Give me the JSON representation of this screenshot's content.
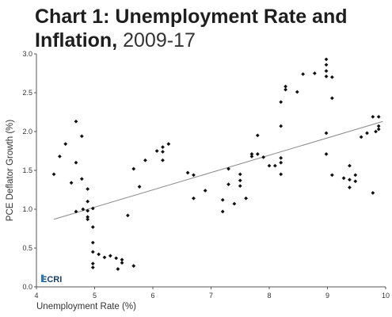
{
  "chart_data": {
    "type": "scatter",
    "title": "Chart 1: Unemployment Rate and Inflation,",
    "title_years": "2009-17",
    "xlabel": "Unemployment Rate (%)",
    "ylabel": "PCE Deflator Growth (%)",
    "xlim": [
      4,
      10
    ],
    "ylim": [
      0.0,
      3.0
    ],
    "xticks": [
      4,
      5,
      6,
      7,
      8,
      9,
      10
    ],
    "yticks": [
      "0.0",
      "0.5",
      "1.0",
      "1.5",
      "2.0",
      "2.5",
      "3.0"
    ],
    "grid": false,
    "trendline": {
      "x": [
        4.3,
        9.95
      ],
      "y": [
        0.87,
        2.13
      ]
    },
    "points": [
      {
        "x": 4.3,
        "y": 1.45
      },
      {
        "x": 4.4,
        "y": 1.68
      },
      {
        "x": 4.5,
        "y": 1.84
      },
      {
        "x": 4.6,
        "y": 1.34
      },
      {
        "x": 4.68,
        "y": 2.13
      },
      {
        "x": 4.68,
        "y": 1.6
      },
      {
        "x": 4.68,
        "y": 0.97
      },
      {
        "x": 4.78,
        "y": 1.94
      },
      {
        "x": 4.78,
        "y": 1.39
      },
      {
        "x": 4.8,
        "y": 1.0
      },
      {
        "x": 4.88,
        "y": 1.26
      },
      {
        "x": 4.88,
        "y": 1.1
      },
      {
        "x": 4.88,
        "y": 0.98
      },
      {
        "x": 4.88,
        "y": 0.9
      },
      {
        "x": 4.88,
        "y": 0.87
      },
      {
        "x": 4.97,
        "y": 1.01
      },
      {
        "x": 4.97,
        "y": 0.77
      },
      {
        "x": 4.97,
        "y": 0.57
      },
      {
        "x": 4.97,
        "y": 0.45
      },
      {
        "x": 4.97,
        "y": 0.3
      },
      {
        "x": 4.97,
        "y": 0.25
      },
      {
        "x": 5.07,
        "y": 0.42
      },
      {
        "x": 5.17,
        "y": 0.38
      },
      {
        "x": 5.27,
        "y": 0.4
      },
      {
        "x": 5.37,
        "y": 0.37
      },
      {
        "x": 5.4,
        "y": 0.23
      },
      {
        "x": 5.47,
        "y": 0.35
      },
      {
        "x": 5.47,
        "y": 0.31
      },
      {
        "x": 5.57,
        "y": 0.92
      },
      {
        "x": 5.67,
        "y": 1.52
      },
      {
        "x": 5.67,
        "y": 0.27
      },
      {
        "x": 5.77,
        "y": 1.29
      },
      {
        "x": 5.87,
        "y": 1.63
      },
      {
        "x": 6.07,
        "y": 1.75
      },
      {
        "x": 6.17,
        "y": 1.74
      },
      {
        "x": 6.17,
        "y": 1.8
      },
      {
        "x": 6.17,
        "y": 1.63
      },
      {
        "x": 6.27,
        "y": 1.84
      },
      {
        "x": 6.6,
        "y": 1.47
      },
      {
        "x": 6.7,
        "y": 1.44
      },
      {
        "x": 6.7,
        "y": 1.14
      },
      {
        "x": 6.9,
        "y": 1.24
      },
      {
        "x": 7.2,
        "y": 1.12
      },
      {
        "x": 7.2,
        "y": 0.97
      },
      {
        "x": 7.3,
        "y": 1.52
      },
      {
        "x": 7.3,
        "y": 1.32
      },
      {
        "x": 7.4,
        "y": 1.07
      },
      {
        "x": 7.5,
        "y": 1.45
      },
      {
        "x": 7.5,
        "y": 1.37
      },
      {
        "x": 7.5,
        "y": 1.3
      },
      {
        "x": 7.6,
        "y": 1.14
      },
      {
        "x": 7.7,
        "y": 1.71
      },
      {
        "x": 7.7,
        "y": 1.68
      },
      {
        "x": 7.8,
        "y": 1.95
      },
      {
        "x": 7.8,
        "y": 1.71
      },
      {
        "x": 7.9,
        "y": 1.67
      },
      {
        "x": 8.0,
        "y": 1.56
      },
      {
        "x": 8.1,
        "y": 1.56
      },
      {
        "x": 8.2,
        "y": 2.38
      },
      {
        "x": 8.2,
        "y": 2.07
      },
      {
        "x": 8.2,
        "y": 1.66
      },
      {
        "x": 8.2,
        "y": 1.6
      },
      {
        "x": 8.2,
        "y": 1.45
      },
      {
        "x": 8.28,
        "y": 2.54
      },
      {
        "x": 8.28,
        "y": 2.58
      },
      {
        "x": 8.48,
        "y": 2.51
      },
      {
        "x": 8.58,
        "y": 2.74
      },
      {
        "x": 8.78,
        "y": 2.75
      },
      {
        "x": 8.98,
        "y": 2.93
      },
      {
        "x": 8.98,
        "y": 2.86
      },
      {
        "x": 8.98,
        "y": 2.78
      },
      {
        "x": 8.98,
        "y": 2.71
      },
      {
        "x": 8.98,
        "y": 1.98
      },
      {
        "x": 8.98,
        "y": 1.71
      },
      {
        "x": 9.08,
        "y": 2.7
      },
      {
        "x": 9.08,
        "y": 2.43
      },
      {
        "x": 9.08,
        "y": 1.44
      },
      {
        "x": 9.28,
        "y": 1.4
      },
      {
        "x": 9.38,
        "y": 1.38
      },
      {
        "x": 9.38,
        "y": 1.56
      },
      {
        "x": 9.38,
        "y": 1.28
      },
      {
        "x": 9.48,
        "y": 1.44
      },
      {
        "x": 9.48,
        "y": 1.36
      },
      {
        "x": 9.58,
        "y": 1.93
      },
      {
        "x": 9.68,
        "y": 1.98
      },
      {
        "x": 9.78,
        "y": 1.21
      },
      {
        "x": 9.78,
        "y": 2.19
      },
      {
        "x": 9.88,
        "y": 2.19
      },
      {
        "x": 9.88,
        "y": 2.07
      },
      {
        "x": 9.88,
        "y": 2.03
      },
      {
        "x": 9.83,
        "y": 2.0
      }
    ]
  },
  "logo": {
    "text": "ECRI",
    "accent_color": "#1f7ac2",
    "text_color": "#1b3f66"
  },
  "colors": {
    "points": "#111111",
    "trendline": "#8a8a8a",
    "axis": "#555555"
  }
}
